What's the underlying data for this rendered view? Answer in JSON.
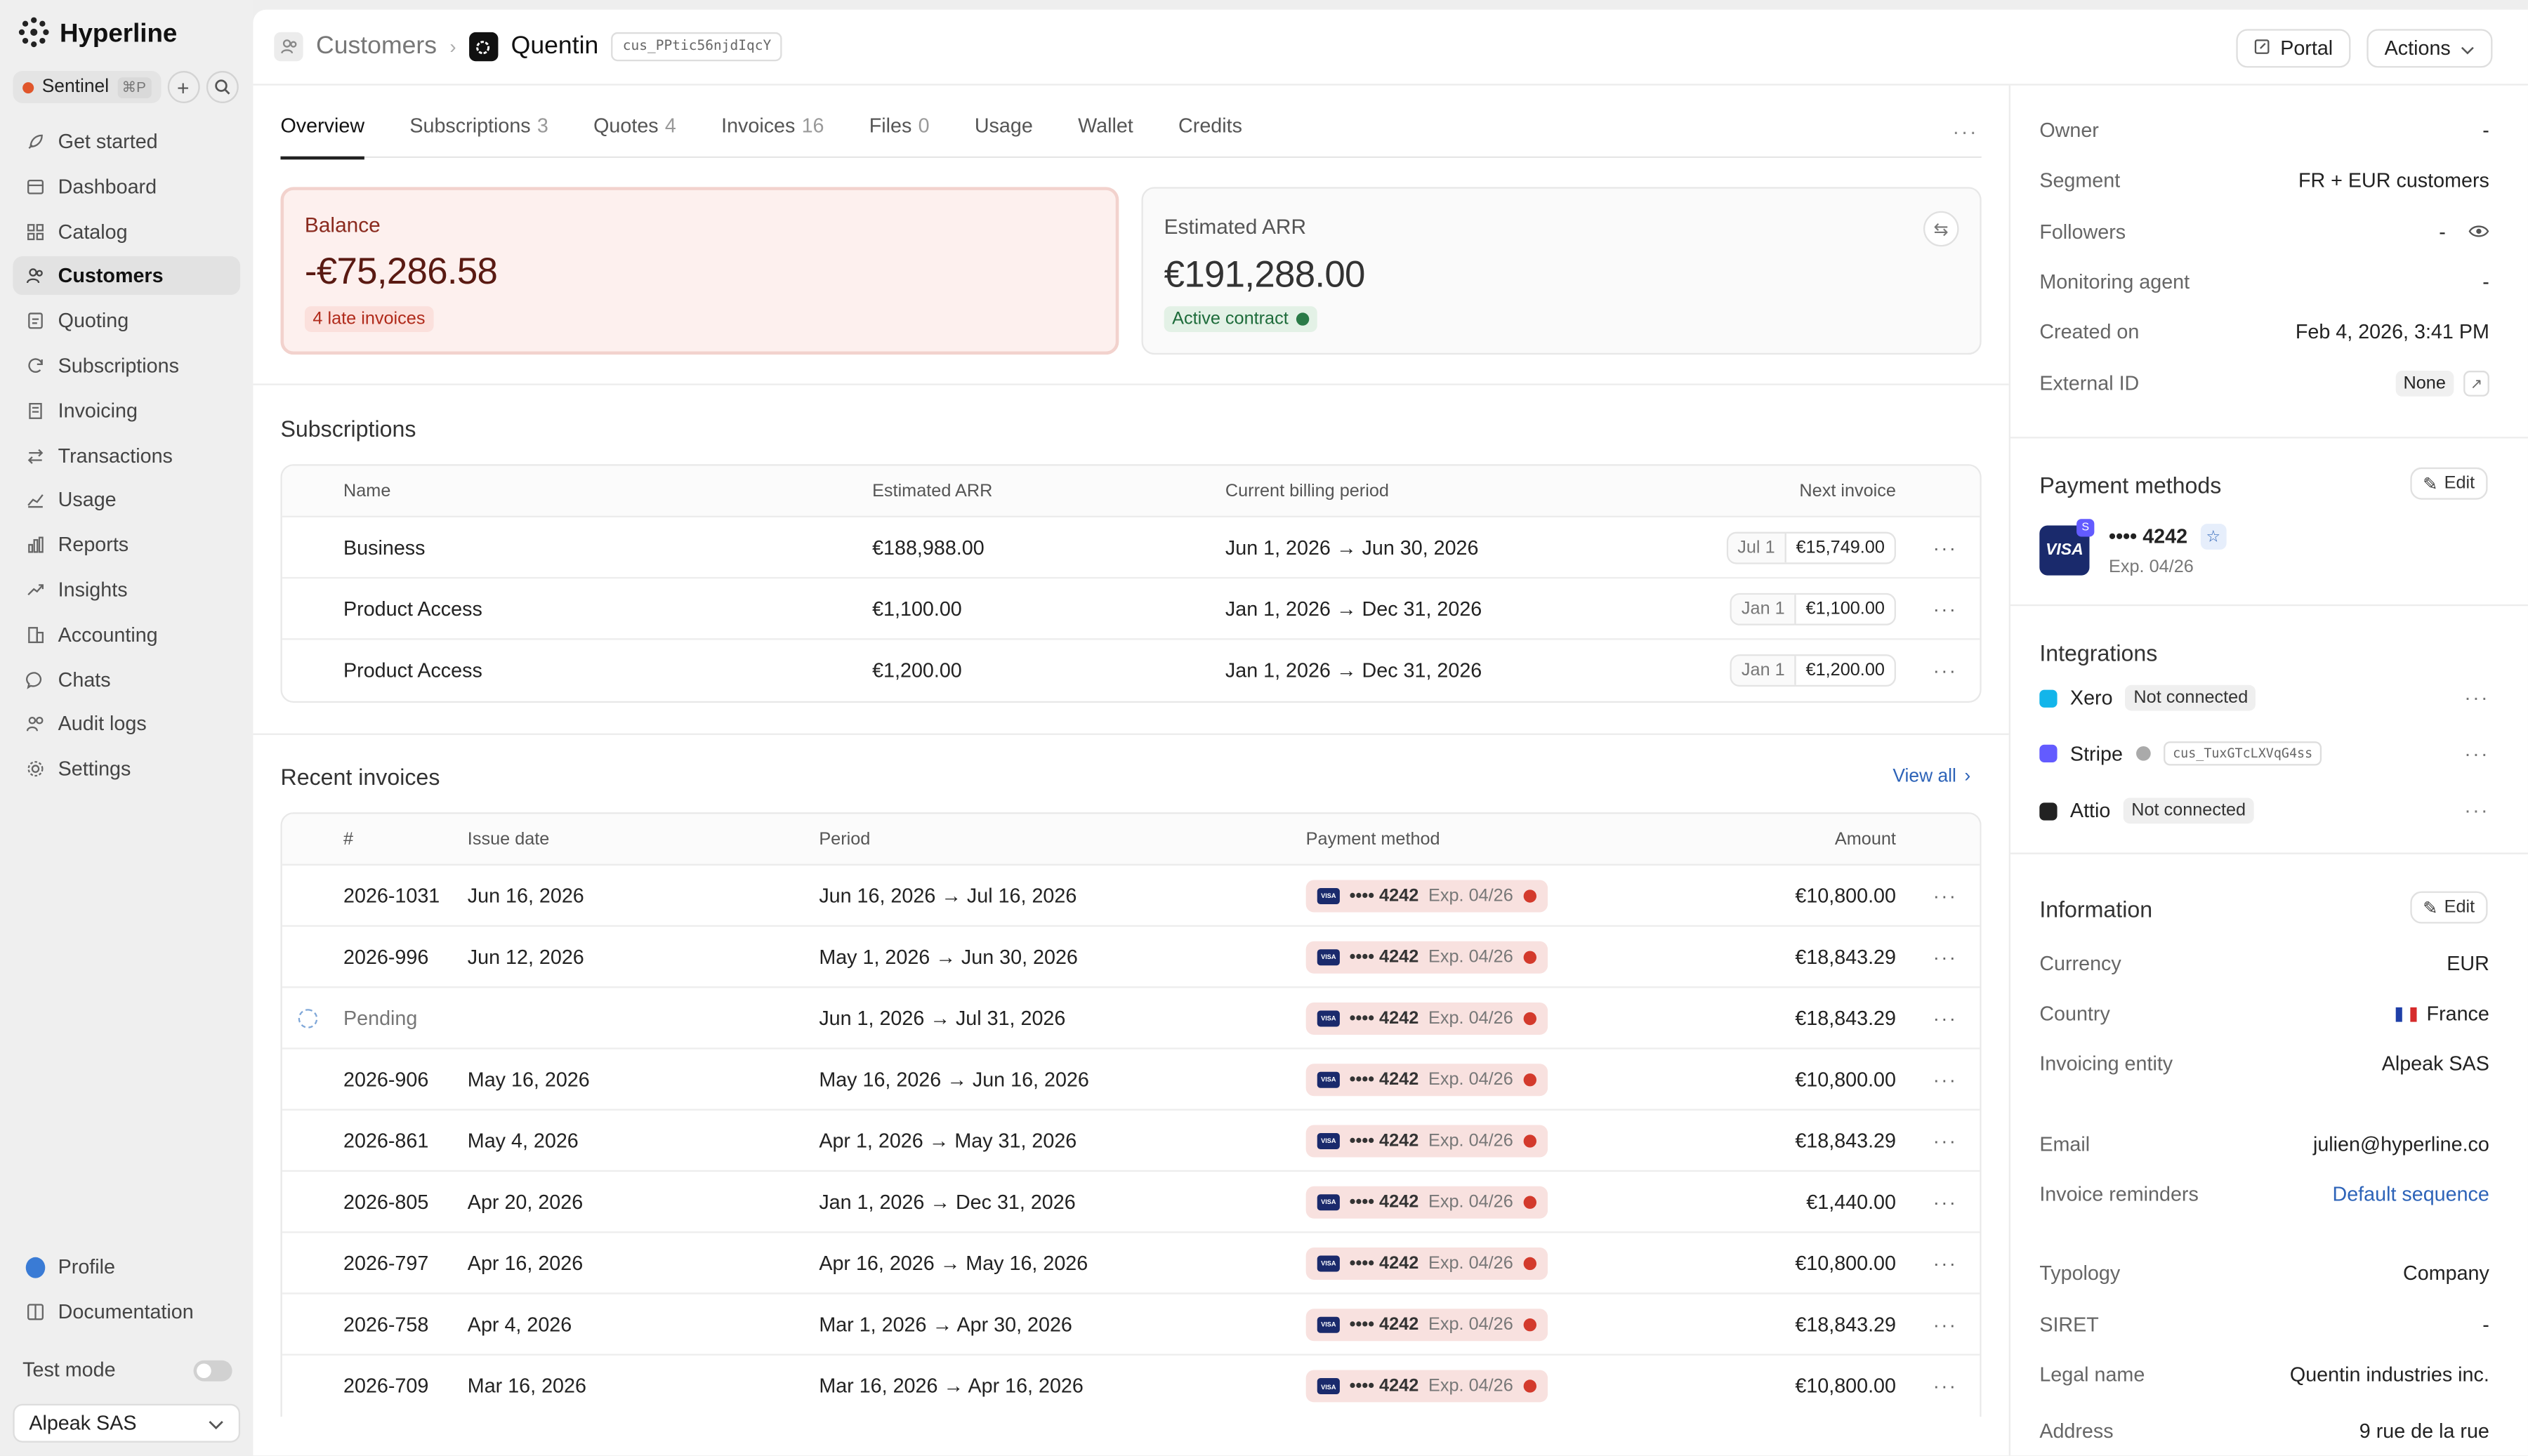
{
  "brand": {
    "name": "Hyperline"
  },
  "workspace": {
    "name": "Sentinel",
    "shortcut": "⌘P"
  },
  "nav": [
    {
      "label": "Get started",
      "icon": "rocket-icon"
    },
    {
      "label": "Dashboard",
      "icon": "dashboard-icon"
    },
    {
      "label": "Catalog",
      "icon": "grid-icon"
    },
    {
      "label": "Customers",
      "icon": "users-icon",
      "active": true
    },
    {
      "label": "Quoting",
      "icon": "quote-icon"
    },
    {
      "label": "Subscriptions",
      "icon": "refresh-icon"
    },
    {
      "label": "Invoicing",
      "icon": "invoice-icon"
    },
    {
      "label": "Transactions",
      "icon": "transfer-icon"
    },
    {
      "label": "Usage",
      "icon": "chart-line-icon"
    },
    {
      "label": "Reports",
      "icon": "bar-chart-icon"
    },
    {
      "label": "Insights",
      "icon": "trend-icon"
    },
    {
      "label": "Accounting",
      "icon": "building-icon"
    },
    {
      "label": "Chats",
      "icon": "chat-icon"
    },
    {
      "label": "Audit logs",
      "icon": "people-icon"
    },
    {
      "label": "Settings",
      "icon": "gear-icon"
    }
  ],
  "nav_bottom": [
    {
      "label": "Profile",
      "icon": "profile-icon"
    },
    {
      "label": "Documentation",
      "icon": "book-icon"
    }
  ],
  "test_mode": {
    "label": "Test mode",
    "on": false
  },
  "entity": {
    "label": "Alpeak SAS"
  },
  "breadcrumb": {
    "parent": "Customers",
    "current": "Quentin",
    "id": "cus_PPtic56njdIqcY"
  },
  "top_actions": {
    "portal": "Portal",
    "actions": "Actions"
  },
  "tabs": [
    {
      "label": "Overview",
      "count": "",
      "active": true
    },
    {
      "label": "Subscriptions",
      "count": "3"
    },
    {
      "label": "Quotes",
      "count": "4"
    },
    {
      "label": "Invoices",
      "count": "16"
    },
    {
      "label": "Files",
      "count": "0"
    },
    {
      "label": "Usage",
      "count": ""
    },
    {
      "label": "Wallet",
      "count": ""
    },
    {
      "label": "Credits",
      "count": ""
    }
  ],
  "balance": {
    "label": "Balance",
    "value": "-€75,286.58",
    "badge": "4 late invoices"
  },
  "arr": {
    "label": "Estimated ARR",
    "value": "€191,288.00",
    "badge": "Active contract"
  },
  "subscriptions": {
    "title": "Subscriptions",
    "headers": {
      "name": "Name",
      "arr": "Estimated ARR",
      "period": "Current billing period",
      "next": "Next invoice"
    },
    "rows": [
      {
        "name": "Business",
        "arr": "€188,988.00",
        "period": "Jun 1, 2026 → Jun 30, 2026",
        "next_date": "Jul 1",
        "next_amount": "€15,749.00"
      },
      {
        "name": "Product Access",
        "arr": "€1,100.00",
        "period": "Jan 1, 2026 → Dec 31, 2026",
        "next_date": "Jan 1",
        "next_amount": "€1,100.00"
      },
      {
        "name": "Product Access",
        "arr": "€1,200.00",
        "period": "Jan 1, 2026 → Dec 31, 2026",
        "next_date": "Jan 1",
        "next_amount": "€1,200.00"
      }
    ]
  },
  "invoices": {
    "title": "Recent invoices",
    "view_all": "View all",
    "headers": {
      "num": "#",
      "issue": "Issue date",
      "period": "Period",
      "pm": "Payment method",
      "amount": "Amount"
    },
    "pm_number": "•••• 4242",
    "pm_exp": "Exp. 04/26",
    "rows": [
      {
        "status": "late",
        "num": "2026-1031",
        "issue": "Jun 16, 2026",
        "period": "Jun 16, 2026 → Jul 16, 2026",
        "amount": "€10,800.00"
      },
      {
        "status": "late",
        "num": "2026-996",
        "issue": "Jun 12, 2026",
        "period": "May 1, 2026 → Jun 30, 2026",
        "amount": "€18,843.29"
      },
      {
        "status": "pending",
        "num": "Pending",
        "issue": "",
        "period": "Jun 1, 2026 → Jul 31, 2026",
        "amount": "€18,843.29"
      },
      {
        "status": "late",
        "num": "2026-906",
        "issue": "May 16, 2026",
        "period": "May 16, 2026 → Jun 16, 2026",
        "amount": "€10,800.00"
      },
      {
        "status": "late",
        "num": "2026-861",
        "issue": "May 4, 2026",
        "period": "Apr 1, 2026 → May 31, 2026",
        "amount": "€18,843.29"
      },
      {
        "status": "paid",
        "num": "2026-805",
        "issue": "Apr 20, 2026",
        "period": "Jan 1, 2026 → Dec 31, 2026",
        "amount": "€1,440.00"
      },
      {
        "status": "paid",
        "num": "2026-797",
        "issue": "Apr 16, 2026",
        "period": "Apr 16, 2026 → May 16, 2026",
        "amount": "€10,800.00"
      },
      {
        "status": "paid",
        "num": "2026-758",
        "issue": "Apr 4, 2026",
        "period": "Mar 1, 2026 → Apr 30, 2026",
        "amount": "€18,843.29"
      },
      {
        "status": "paid",
        "num": "2026-709",
        "issue": "Mar 16, 2026",
        "period": "Mar 16, 2026 → Apr 16, 2026",
        "amount": "€10,800.00"
      }
    ]
  },
  "details": {
    "owner": {
      "k": "Owner",
      "v": "-"
    },
    "segment": {
      "k": "Segment",
      "v": "FR + EUR customers"
    },
    "followers": {
      "k": "Followers",
      "v": "-"
    },
    "monitoring": {
      "k": "Monitoring agent",
      "v": "-"
    },
    "created": {
      "k": "Created on",
      "v": "Feb 4, 2026, 3:41 PM"
    },
    "external": {
      "k": "External ID",
      "v": "None"
    }
  },
  "payment_methods": {
    "title": "Payment methods",
    "edit": "Edit",
    "number": "•••• 4242",
    "exp": "Exp. 04/26",
    "brand": "VISA",
    "badge": "S"
  },
  "integrations": {
    "title": "Integrations",
    "items": [
      {
        "name": "Xero",
        "status": "Not connected",
        "color": "#13b5ea"
      },
      {
        "name": "Stripe",
        "id": "cus_TuxGTcLXVqG4ss",
        "color": "#635bff"
      },
      {
        "name": "Attio",
        "status": "Not connected",
        "color": "#222222"
      }
    ]
  },
  "information": {
    "title": "Information",
    "edit": "Edit",
    "currency": {
      "k": "Currency",
      "v": "EUR"
    },
    "country": {
      "k": "Country",
      "v": "France"
    },
    "entity": {
      "k": "Invoicing entity",
      "v": "Alpeak SAS"
    },
    "email": {
      "k": "Email",
      "v": "julien@hyperline.co"
    },
    "reminders": {
      "k": "Invoice reminders",
      "v": "Default sequence"
    },
    "typology": {
      "k": "Typology",
      "v": "Company"
    },
    "siret": {
      "k": "SIRET",
      "v": "-"
    },
    "legal": {
      "k": "Legal name",
      "v": "Quentin industries inc."
    },
    "address": {
      "k": "Address",
      "v": "9 rue de la rue"
    }
  },
  "colors": {
    "accent": "#2d63b8",
    "late": "#c9962a",
    "paid": "#1f6b3d",
    "danger": "#d33a2c"
  }
}
